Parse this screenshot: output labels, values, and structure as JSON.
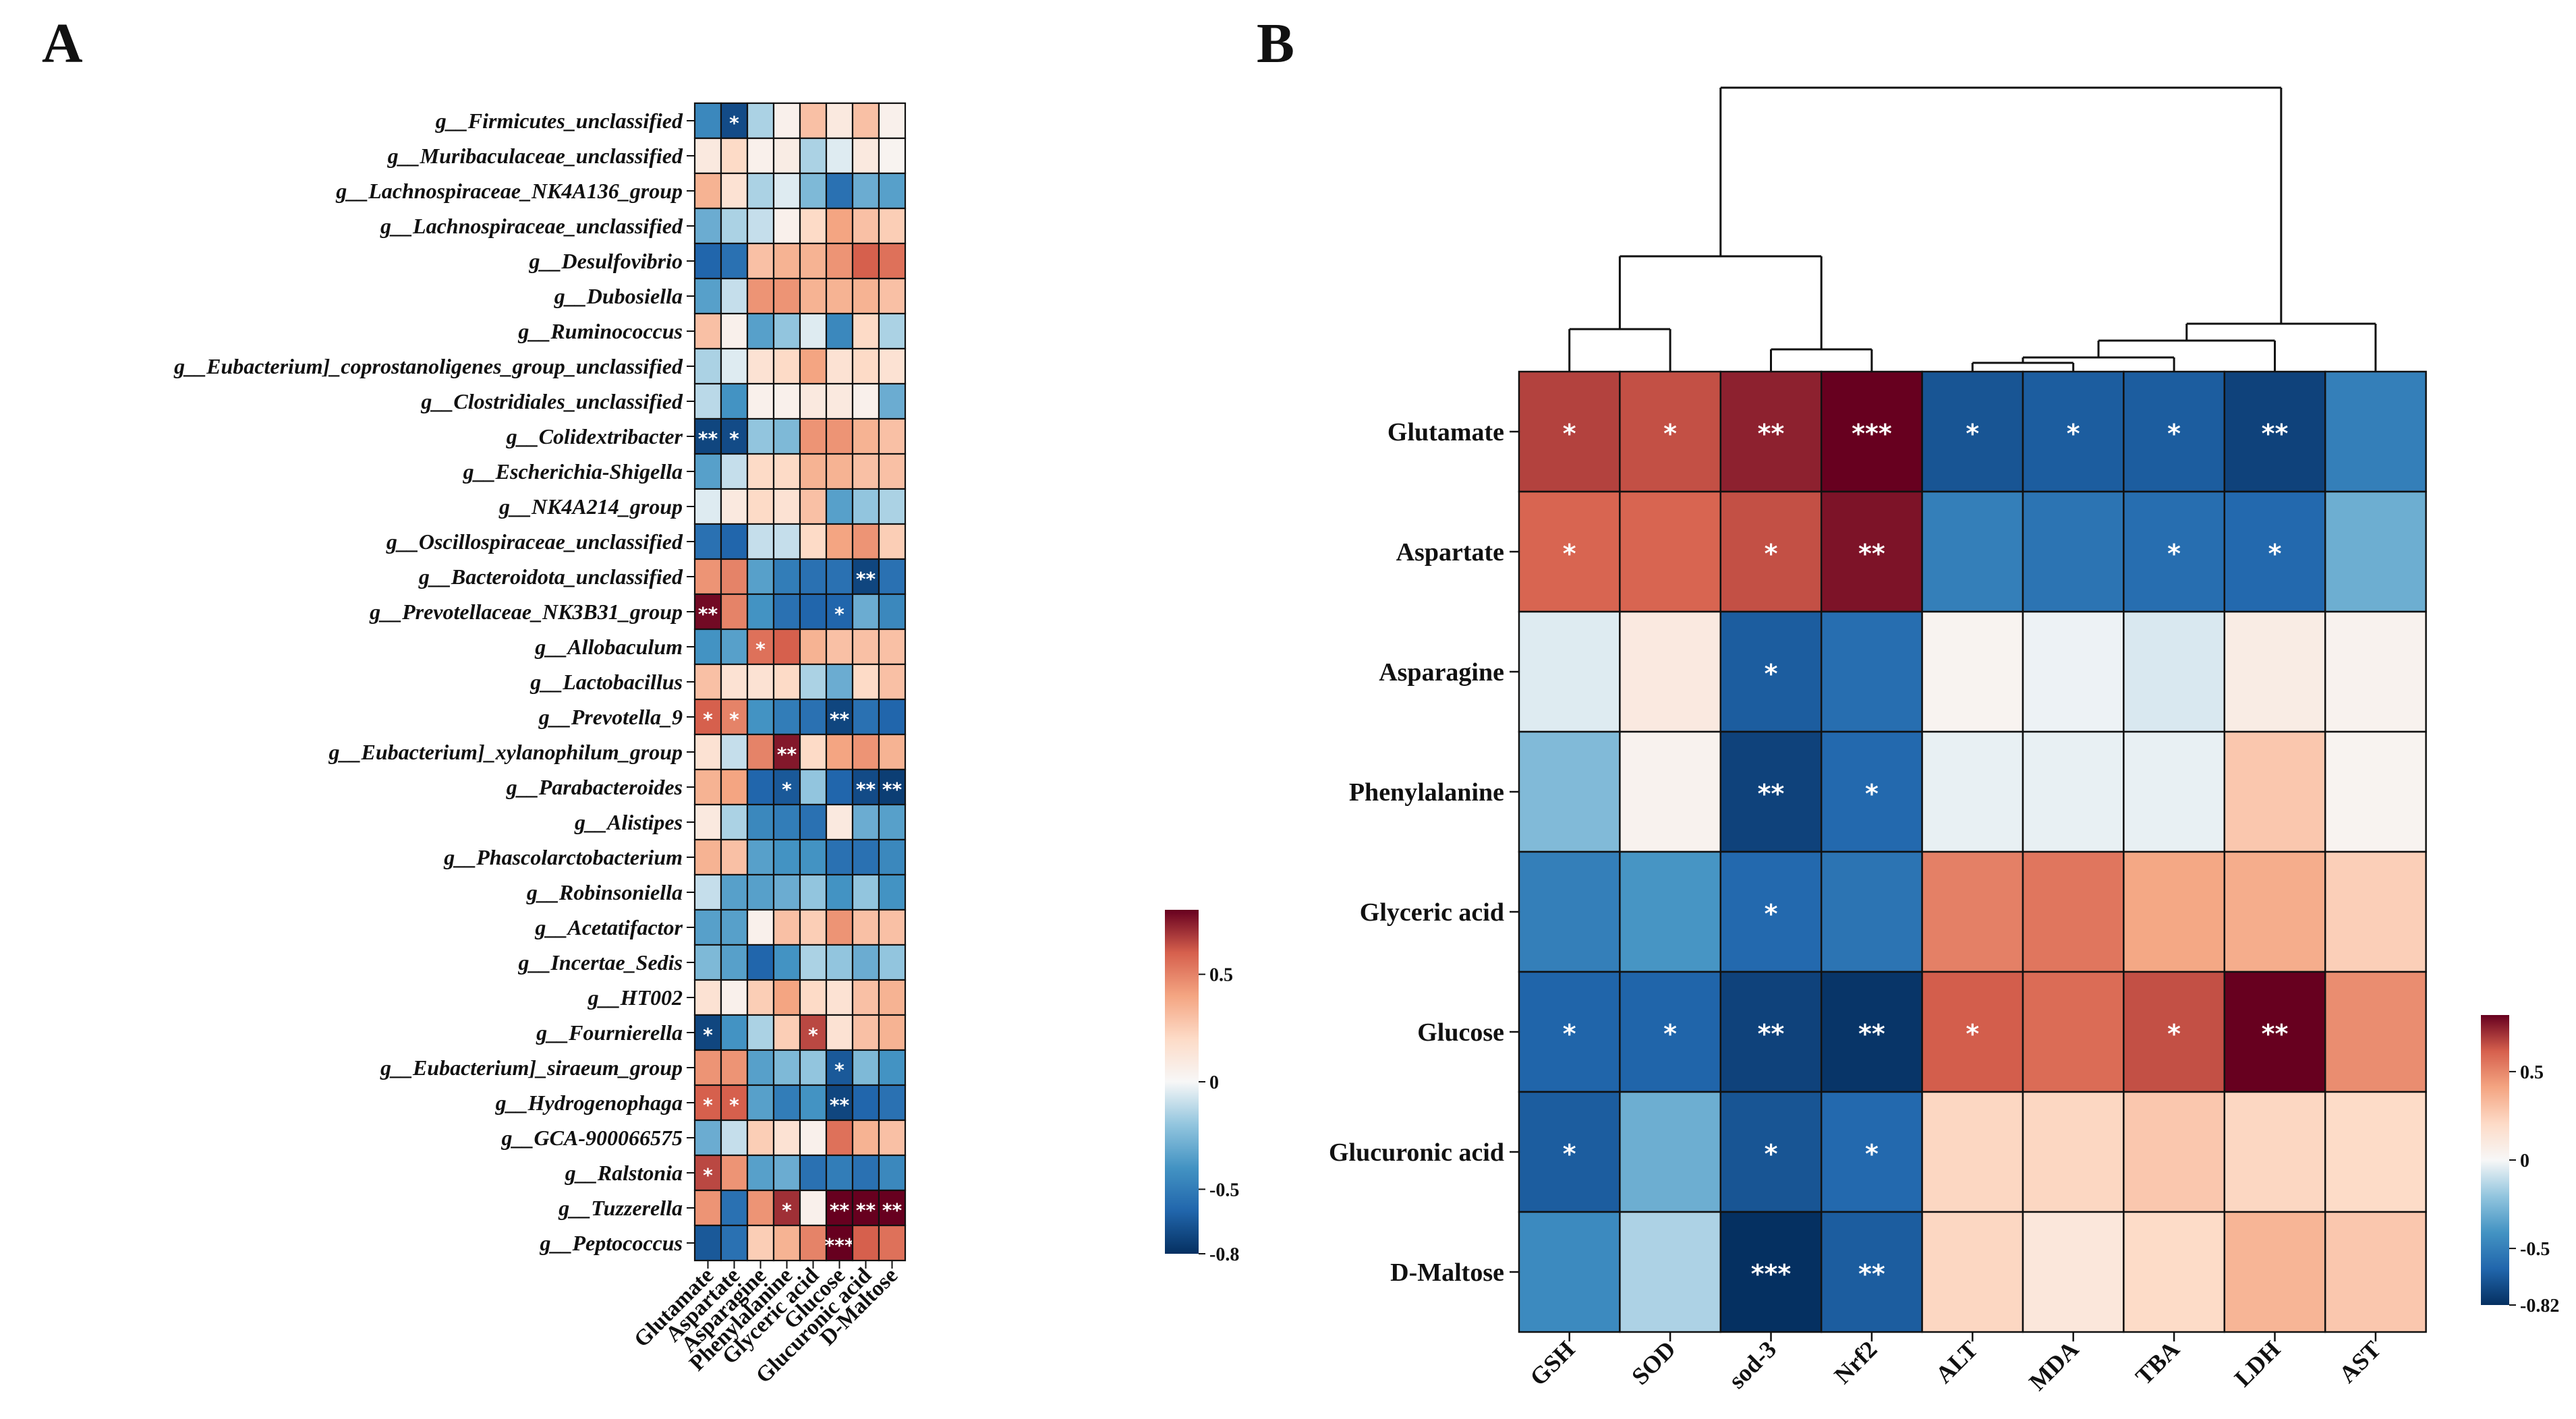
{
  "chart_data": [
    {
      "panel": "A",
      "type": "heatmap",
      "rows": [
        "g__Firmicutes_unclassified",
        "g__Muribaculaceae_unclassified",
        "g__Lachnospiraceae_NK4A136_group",
        "g__Lachnospiraceae_unclassified",
        "g__Desulfovibrio",
        "g__Dubosiella",
        "g__Ruminococcus",
        "g__Eubacterium]_coprostanoligenes_group_unclassified",
        "g__Clostridiales_unclassified",
        "g__Colidextribacter",
        "g__Escherichia-Shigella",
        "g__NK4A214_group",
        "g__Oscillospiraceae_unclassified",
        "g__Bacteroidota_unclassified",
        "g__Prevotellaceae_NK3B31_group",
        "g__Allobaculum",
        "g__Lactobacillus",
        "g__Prevotella_9",
        "g__Eubacterium]_xylanophilum_group",
        "g__Parabacteroides",
        "g__Alistipes",
        "g__Phascolarctobacterium",
        "g__Robinsoniella",
        "g__Acetatifactor",
        "g__Incertae_Sedis",
        "g__HT002",
        "g__Fournierella",
        "g__Eubacterium]_siraeum_group",
        "g__Hydrogenophaga",
        "g__GCA-900066575",
        "g__Ralstonia",
        "g__Tuzzerella",
        "g__Peptococcus"
      ],
      "columns": [
        "Glutamate",
        "Aspartate",
        "Asparagine",
        "Phenylalanine",
        "Glyceric acid",
        "Glucose",
        "Glucuronic acid",
        "D-Maltose"
      ],
      "values": [
        [
          -0.45,
          -0.7,
          -0.15,
          0.05,
          0.3,
          0.1,
          0.3,
          0.05
        ],
        [
          0.1,
          0.2,
          0.05,
          0.08,
          -0.15,
          -0.05,
          0.1,
          0.03
        ],
        [
          0.35,
          0.15,
          -0.15,
          -0.05,
          -0.25,
          -0.55,
          -0.3,
          -0.35
        ],
        [
          -0.3,
          -0.15,
          -0.1,
          0.05,
          0.2,
          0.4,
          0.3,
          0.25
        ],
        [
          -0.6,
          -0.55,
          0.3,
          0.35,
          0.35,
          0.45,
          0.6,
          0.55
        ],
        [
          -0.35,
          -0.1,
          0.45,
          0.45,
          0.35,
          0.35,
          0.35,
          0.3
        ],
        [
          0.3,
          0.05,
          -0.35,
          -0.2,
          -0.05,
          -0.45,
          0.2,
          -0.15
        ],
        [
          -0.15,
          -0.05,
          0.15,
          0.2,
          0.4,
          0.15,
          0.2,
          0.15
        ],
        [
          -0.12,
          -0.4,
          0.05,
          0.05,
          0.1,
          0.1,
          0.05,
          -0.3
        ],
        [
          -0.72,
          -0.7,
          -0.2,
          -0.25,
          0.45,
          0.45,
          0.35,
          0.3
        ],
        [
          -0.35,
          -0.1,
          0.2,
          0.2,
          0.35,
          0.35,
          0.3,
          0.3
        ],
        [
          -0.05,
          0.1,
          0.2,
          0.15,
          0.3,
          -0.35,
          -0.2,
          -0.15
        ],
        [
          -0.55,
          -0.6,
          -0.1,
          -0.1,
          0.2,
          0.4,
          0.45,
          0.25
        ],
        [
          0.45,
          0.5,
          -0.35,
          -0.5,
          -0.55,
          -0.55,
          -0.72,
          -0.55
        ],
        [
          0.78,
          0.5,
          -0.4,
          -0.55,
          -0.6,
          -0.6,
          -0.3,
          -0.45
        ],
        [
          -0.4,
          -0.35,
          0.55,
          0.6,
          0.35,
          0.3,
          0.3,
          0.3
        ],
        [
          0.3,
          0.15,
          0.15,
          0.2,
          -0.15,
          -0.3,
          0.2,
          0.3
        ],
        [
          0.6,
          0.5,
          -0.4,
          -0.5,
          -0.55,
          -0.72,
          -0.55,
          -0.6
        ],
        [
          0.15,
          -0.1,
          0.5,
          0.75,
          0.2,
          0.4,
          0.45,
          0.35
        ],
        [
          0.35,
          0.4,
          -0.6,
          -0.65,
          -0.2,
          -0.6,
          -0.7,
          -0.75
        ],
        [
          0.1,
          -0.15,
          -0.45,
          -0.5,
          -0.55,
          0.1,
          -0.3,
          -0.35
        ],
        [
          0.35,
          0.3,
          -0.35,
          -0.4,
          -0.4,
          -0.55,
          -0.55,
          -0.45
        ],
        [
          -0.1,
          -0.35,
          -0.35,
          -0.3,
          -0.2,
          -0.4,
          -0.2,
          -0.4
        ],
        [
          -0.35,
          -0.35,
          0.05,
          0.3,
          0.25,
          0.45,
          0.3,
          0.3
        ],
        [
          -0.25,
          -0.35,
          -0.6,
          -0.4,
          -0.15,
          -0.2,
          -0.3,
          -0.2
        ],
        [
          0.15,
          0.05,
          0.25,
          0.4,
          0.2,
          0.15,
          0.3,
          0.35
        ],
        [
          -0.72,
          -0.4,
          -0.15,
          0.25,
          0.65,
          0.15,
          0.3,
          0.35
        ],
        [
          0.45,
          0.45,
          -0.35,
          -0.25,
          -0.2,
          -0.65,
          -0.25,
          -0.4
        ],
        [
          0.6,
          0.6,
          -0.35,
          -0.5,
          -0.4,
          -0.72,
          -0.6,
          -0.55
        ],
        [
          -0.3,
          -0.1,
          0.25,
          0.15,
          0.05,
          0.55,
          0.35,
          0.3
        ],
        [
          0.65,
          0.45,
          -0.35,
          -0.3,
          -0.55,
          -0.5,
          -0.55,
          -0.45
        ],
        [
          0.45,
          -0.55,
          0.45,
          0.7,
          0.05,
          0.8,
          0.8,
          0.8
        ],
        [
          -0.65,
          -0.55,
          0.25,
          0.35,
          0.5,
          0.8,
          0.6,
          0.55
        ]
      ],
      "stars": [
        [
          "",
          "*",
          "",
          "",
          "",
          "",
          "",
          ""
        ],
        [
          "",
          "",
          "",
          "",
          "",
          "",
          "",
          ""
        ],
        [
          "",
          "",
          "",
          "",
          "",
          "",
          "",
          ""
        ],
        [
          "",
          "",
          "",
          "",
          "",
          "",
          "",
          ""
        ],
        [
          "",
          "",
          "",
          "",
          "",
          "",
          "",
          ""
        ],
        [
          "",
          "",
          "",
          "",
          "",
          "",
          "",
          ""
        ],
        [
          "",
          "",
          "",
          "",
          "",
          "",
          "",
          ""
        ],
        [
          "",
          "",
          "",
          "",
          "",
          "",
          "",
          ""
        ],
        [
          "",
          "",
          "",
          "",
          "",
          "",
          "",
          ""
        ],
        [
          "**",
          "*",
          "",
          "",
          "",
          "",
          "",
          ""
        ],
        [
          "",
          "",
          "",
          "",
          "",
          "",
          "",
          ""
        ],
        [
          "",
          "",
          "",
          "",
          "",
          "",
          "",
          ""
        ],
        [
          "",
          "",
          "",
          "",
          "",
          "",
          "",
          ""
        ],
        [
          "",
          "",
          "",
          "",
          "",
          "",
          "**",
          ""
        ],
        [
          "**",
          "",
          "",
          "",
          "",
          "*",
          "",
          ""
        ],
        [
          "",
          "",
          "*",
          "",
          "",
          "",
          "",
          ""
        ],
        [
          "",
          "",
          "",
          "",
          "",
          "",
          "",
          ""
        ],
        [
          "*",
          "*",
          "",
          "",
          "",
          "**",
          "",
          ""
        ],
        [
          "",
          "",
          "",
          "**",
          "",
          "",
          "",
          ""
        ],
        [
          "",
          "",
          "",
          "*",
          "",
          "",
          "**",
          "**"
        ],
        [
          "",
          "",
          "",
          "",
          "",
          "",
          "",
          ""
        ],
        [
          "",
          "",
          "",
          "",
          "",
          "",
          "",
          ""
        ],
        [
          "",
          "",
          "",
          "",
          "",
          "",
          "",
          ""
        ],
        [
          "",
          "",
          "",
          "",
          "",
          "",
          "",
          ""
        ],
        [
          "",
          "",
          "",
          "",
          "",
          "",
          "",
          ""
        ],
        [
          "",
          "",
          "",
          "",
          "",
          "",
          "",
          ""
        ],
        [
          "*",
          "",
          "",
          "",
          "*",
          "",
          "",
          ""
        ],
        [
          "",
          "",
          "",
          "",
          "",
          "*",
          "",
          ""
        ],
        [
          "*",
          "*",
          "",
          "",
          "",
          "**",
          "",
          ""
        ],
        [
          "",
          "",
          "",
          "",
          "",
          "",
          "",
          ""
        ],
        [
          "*",
          "",
          "",
          "",
          "",
          "",
          "",
          ""
        ],
        [
          "",
          "",
          "",
          "*",
          "",
          "**",
          "**",
          "**"
        ],
        [
          "",
          "",
          "",
          "",
          "",
          "***",
          "",
          ""
        ]
      ],
      "colorbar": {
        "min": -0.8,
        "max": 0.8,
        "ticks": [
          0.5,
          0,
          -0.5,
          -0.8
        ],
        "tick_labels": [
          "0.5",
          "0",
          "-0.5",
          "-0.8"
        ]
      }
    },
    {
      "panel": "B",
      "type": "heatmap",
      "rows": [
        "Glutamate",
        "Aspartate",
        "Asparagine",
        "Phenylalanine",
        "Glyceric acid",
        "Glucose",
        "Glucuronic acid",
        "D-Maltose"
      ],
      "columns": [
        "GSH",
        "SOD",
        "sod-3",
        "Nrf2",
        "ALT",
        "MDA",
        "TBA",
        "LDH",
        "AST"
      ],
      "values": [
        [
          0.68,
          0.65,
          0.75,
          0.82,
          -0.68,
          -0.65,
          -0.65,
          -0.75,
          -0.5
        ],
        [
          0.6,
          0.6,
          0.65,
          0.78,
          -0.5,
          -0.55,
          -0.58,
          -0.6,
          -0.3
        ],
        [
          -0.05,
          0.1,
          -0.65,
          -0.58,
          0.03,
          -0.02,
          -0.06,
          0.08,
          0.04
        ],
        [
          -0.25,
          0.04,
          -0.75,
          -0.6,
          -0.03,
          -0.03,
          -0.03,
          0.28,
          0.03
        ],
        [
          -0.5,
          -0.4,
          -0.6,
          -0.55,
          0.52,
          0.55,
          0.4,
          0.38,
          0.25
        ],
        [
          -0.62,
          -0.62,
          -0.75,
          -0.8,
          0.62,
          0.58,
          0.65,
          0.82,
          0.48
        ],
        [
          -0.65,
          -0.3,
          -0.68,
          -0.6,
          0.22,
          0.22,
          0.28,
          0.22,
          0.2
        ],
        [
          -0.45,
          -0.15,
          -0.82,
          -0.65,
          0.22,
          0.12,
          0.2,
          0.35,
          0.28
        ]
      ],
      "stars": [
        [
          "*",
          "*",
          "**",
          "***",
          "*",
          "*",
          "*",
          "**",
          ""
        ],
        [
          "*",
          "",
          "*",
          "**",
          "",
          "",
          "*",
          "*",
          ""
        ],
        [
          "",
          "",
          "*",
          "",
          "",
          "",
          "",
          "",
          ""
        ],
        [
          "",
          "",
          "**",
          "*",
          "",
          "",
          "",
          "",
          ""
        ],
        [
          "",
          "",
          "*",
          "",
          "",
          "",
          "",
          "",
          ""
        ],
        [
          "*",
          "*",
          "**",
          "**",
          "*",
          "",
          "*",
          "**",
          ""
        ],
        [
          "*",
          "",
          "*",
          "*",
          "",
          "",
          "",
          "",
          ""
        ],
        [
          "",
          "",
          "***",
          "**",
          "",
          "",
          "",
          "",
          ""
        ]
      ],
      "dendrogram": "column clustering tree over GSH, SOD, sod-3, Nrf2 | ALT, MDA, TBA, LDH, AST",
      "colorbar": {
        "min": -0.82,
        "max": 0.82,
        "ticks": [
          0.5,
          0,
          -0.5,
          -0.82
        ],
        "tick_labels": [
          "0.5",
          "0",
          "-0.5",
          "-0.82"
        ]
      }
    }
  ]
}
